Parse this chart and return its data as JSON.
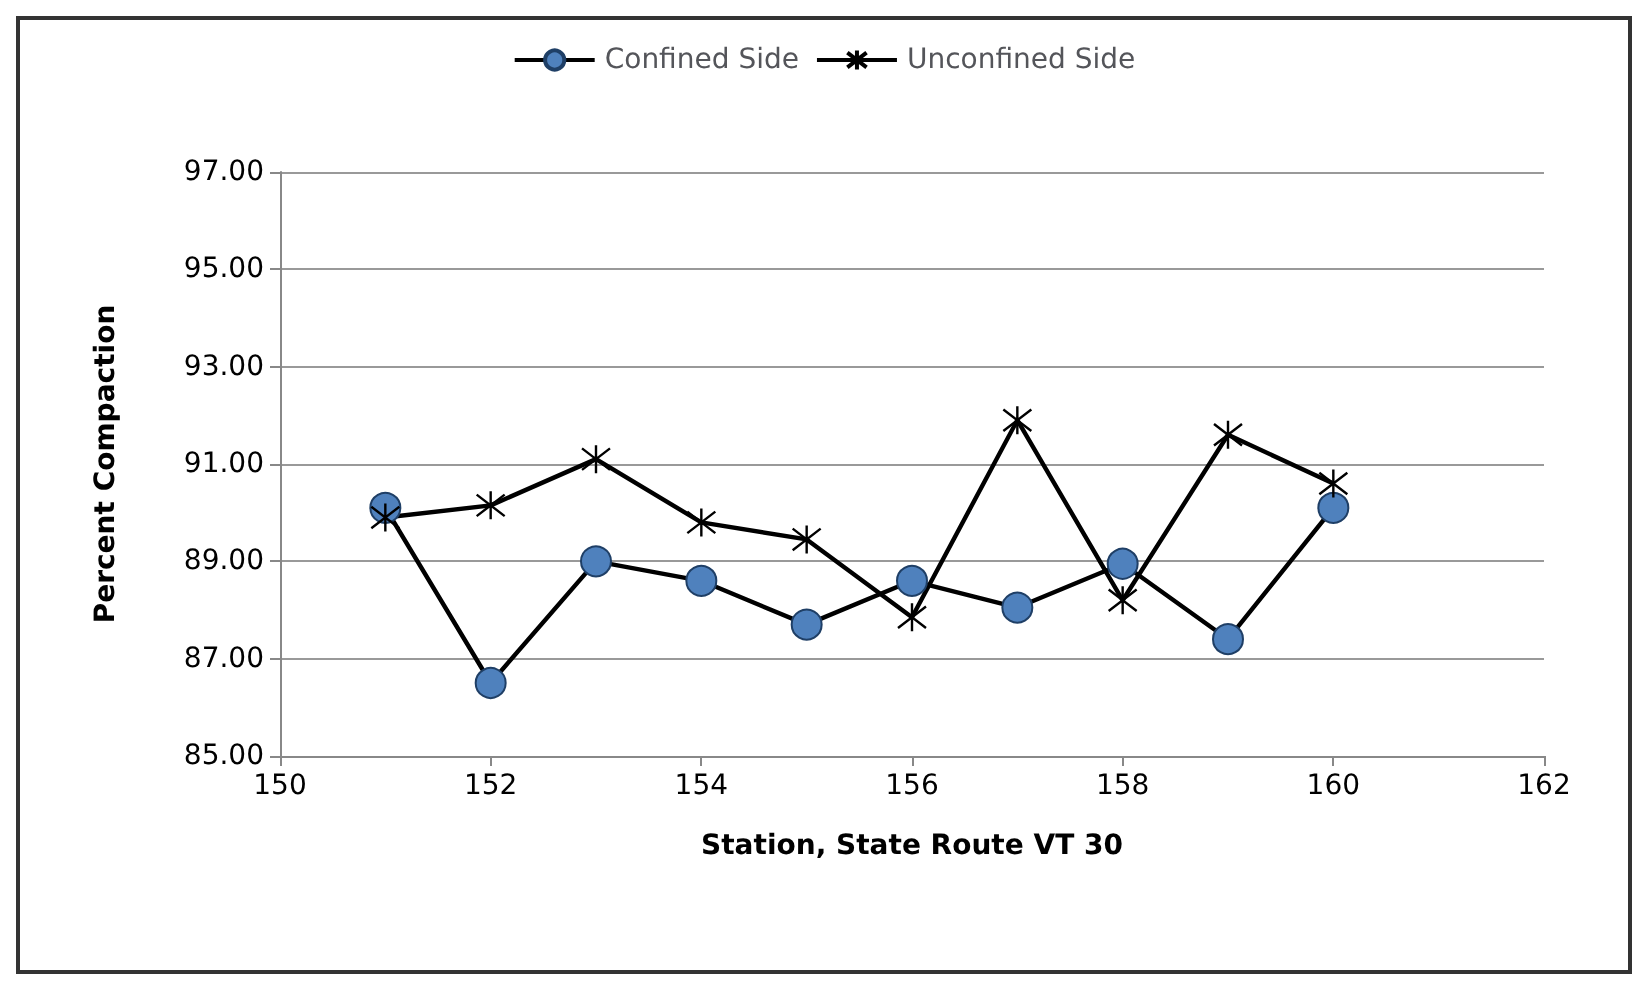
{
  "chart_data": {
    "type": "line",
    "xlabel": "Station, State Route VT 30",
    "ylabel": "Percent Compaction",
    "x": [
      151,
      152,
      153,
      154,
      155,
      156,
      157,
      158,
      159,
      160
    ],
    "series": [
      {
        "name": "Confined Side",
        "color": "#4f81bd",
        "marker": "circle",
        "values": [
          90.1,
          86.5,
          89.0,
          88.6,
          87.7,
          88.6,
          88.05,
          88.95,
          87.4,
          90.1
        ]
      },
      {
        "name": "Unconfined Side",
        "color": "#000000",
        "marker": "cross",
        "values": [
          89.9,
          90.15,
          91.1,
          89.8,
          89.45,
          87.85,
          91.9,
          88.2,
          91.6,
          90.6
        ]
      }
    ],
    "xlim": [
      150,
      162
    ],
    "xticks": [
      150,
      152,
      154,
      156,
      158,
      160,
      162
    ],
    "ylim": [
      85,
      97
    ],
    "yticks": [
      {
        "value": 85,
        "label": "85.00"
      },
      {
        "value": 87,
        "label": "87.00"
      },
      {
        "value": 89,
        "label": "89.00"
      },
      {
        "value": 91,
        "label": "91.00"
      },
      {
        "value": 93,
        "label": "93.00"
      },
      {
        "value": 95,
        "label": "95.00"
      },
      {
        "value": 97,
        "label": "97.00"
      }
    ],
    "grid": "y",
    "legend": "top",
    "line_style": "solid"
  }
}
